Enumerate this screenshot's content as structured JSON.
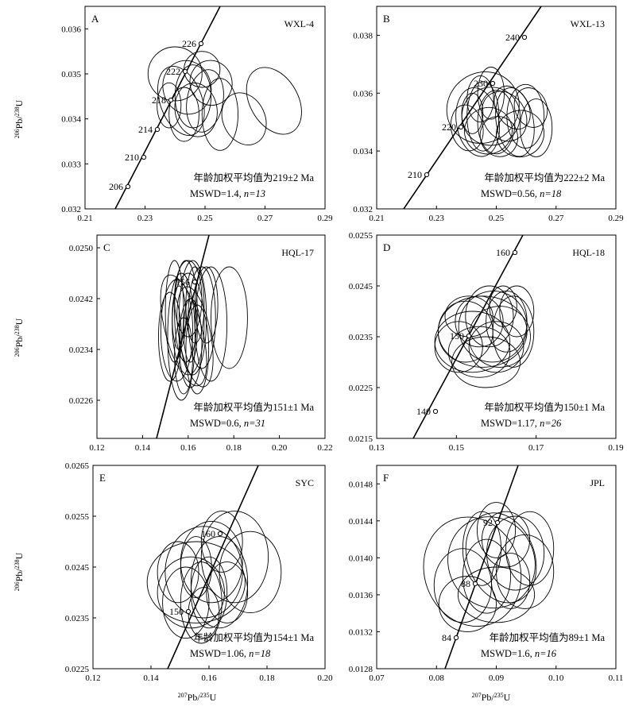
{
  "figure": {
    "xlabel_left": "207Pb/235U",
    "xlabel_right": "207Pb/235U",
    "ylabel": "206Pb/238U"
  },
  "chart_data": [
    {
      "type": "concordia",
      "panel": "A",
      "sample": "WXL-4",
      "xlim": [
        0.21,
        0.29
      ],
      "xticks": [
        "0.21",
        "0.23",
        "0.25",
        "0.27",
        "0.29"
      ],
      "ylim": [
        0.032,
        0.0365
      ],
      "yticks": [
        "0.032",
        "0.033",
        "0.034",
        "0.035",
        "0.036"
      ],
      "concordia_ages": [
        "206",
        "210",
        "214",
        "218",
        "222",
        "226"
      ],
      "concordia_label_side": "left",
      "mean_age": "年龄加权平均值为219±2 Ma",
      "mswd": "MSWD=1.4, ",
      "n": "n=13",
      "ellipses": [
        {
          "x": 0.24,
          "y": 0.035,
          "rx": 0.009,
          "ry": 0.0006,
          "rot": 0
        },
        {
          "x": 0.244,
          "y": 0.0347,
          "rx": 0.008,
          "ry": 0.0006,
          "rot": -15
        },
        {
          "x": 0.242,
          "y": 0.0344,
          "rx": 0.007,
          "ry": 0.0008,
          "rot": -20
        },
        {
          "x": 0.246,
          "y": 0.0345,
          "rx": 0.006,
          "ry": 0.0007,
          "rot": 0
        },
        {
          "x": 0.25,
          "y": 0.0344,
          "rx": 0.006,
          "ry": 0.0007,
          "rot": 10
        },
        {
          "x": 0.247,
          "y": 0.0342,
          "rx": 0.007,
          "ry": 0.0006,
          "rot": -10
        },
        {
          "x": 0.243,
          "y": 0.0341,
          "rx": 0.005,
          "ry": 0.0006,
          "rot": 0
        },
        {
          "x": 0.252,
          "y": 0.0348,
          "rx": 0.007,
          "ry": 0.0005,
          "rot": -15
        },
        {
          "x": 0.255,
          "y": 0.0341,
          "rx": 0.006,
          "ry": 0.0008,
          "rot": 0
        },
        {
          "x": 0.263,
          "y": 0.034,
          "rx": 0.007,
          "ry": 0.0006,
          "rot": -25
        },
        {
          "x": 0.273,
          "y": 0.0344,
          "rx": 0.008,
          "ry": 0.0008,
          "rot": -30
        },
        {
          "x": 0.249,
          "y": 0.0351,
          "rx": 0.006,
          "ry": 0.0004,
          "rot": 0
        },
        {
          "x": 0.238,
          "y": 0.0343,
          "rx": 0.004,
          "ry": 0.0005,
          "rot": 0
        }
      ]
    },
    {
      "type": "concordia",
      "panel": "B",
      "sample": "WXL-13",
      "xlim": [
        0.21,
        0.3
      ],
      "xticks": [
        "0.21",
        "0.23",
        "0.25",
        "0.27",
        "0.29"
      ],
      "ylim": [
        0.032,
        0.039
      ],
      "yticks": [
        "0.032",
        "0.034",
        "0.036",
        "0.038"
      ],
      "concordia_ages": [
        "210",
        "220",
        "230",
        "240"
      ],
      "concordia_label_side": "left",
      "mean_age": "年龄加权平均值为222±2 Ma",
      "mswd": "MSWD=0.56, ",
      "n": "n=18",
      "ellipses": [
        {
          "x": 0.25,
          "y": 0.0355,
          "rx": 0.014,
          "ry": 0.0012,
          "rot": -40
        },
        {
          "x": 0.253,
          "y": 0.0352,
          "rx": 0.011,
          "ry": 0.001,
          "rot": -40
        },
        {
          "x": 0.248,
          "y": 0.035,
          "rx": 0.008,
          "ry": 0.0012,
          "rot": -10
        },
        {
          "x": 0.25,
          "y": 0.0352,
          "rx": 0.006,
          "ry": 0.0012,
          "rot": 0
        },
        {
          "x": 0.255,
          "y": 0.035,
          "rx": 0.007,
          "ry": 0.0011,
          "rot": 0
        },
        {
          "x": 0.252,
          "y": 0.0347,
          "rx": 0.009,
          "ry": 0.0008,
          "rot": -20
        },
        {
          "x": 0.258,
          "y": 0.0352,
          "rx": 0.008,
          "ry": 0.0009,
          "rot": -30
        },
        {
          "x": 0.262,
          "y": 0.035,
          "rx": 0.007,
          "ry": 0.0012,
          "rot": -10
        },
        {
          "x": 0.266,
          "y": 0.0352,
          "rx": 0.007,
          "ry": 0.0011,
          "rot": 0
        },
        {
          "x": 0.27,
          "y": 0.0348,
          "rx": 0.006,
          "ry": 0.001,
          "rot": 0
        },
        {
          "x": 0.244,
          "y": 0.0348,
          "rx": 0.006,
          "ry": 0.0008,
          "rot": -10
        },
        {
          "x": 0.256,
          "y": 0.0345,
          "rx": 0.007,
          "ry": 0.0007,
          "rot": -20
        },
        {
          "x": 0.261,
          "y": 0.0355,
          "rx": 0.006,
          "ry": 0.0008,
          "rot": -30
        },
        {
          "x": 0.249,
          "y": 0.0358,
          "rx": 0.005,
          "ry": 0.0008,
          "rot": 0
        },
        {
          "x": 0.246,
          "y": 0.0353,
          "rx": 0.004,
          "ry": 0.0007,
          "rot": 0
        },
        {
          "x": 0.264,
          "y": 0.0346,
          "rx": 0.009,
          "ry": 0.0008,
          "rot": -20
        },
        {
          "x": 0.268,
          "y": 0.0355,
          "rx": 0.006,
          "ry": 0.0007,
          "rot": -20
        },
        {
          "x": 0.253,
          "y": 0.036,
          "rx": 0.005,
          "ry": 0.0009,
          "rot": 0
        }
      ]
    },
    {
      "type": "concordia",
      "panel": "C",
      "sample": "HQL-17",
      "xlim": [
        0.12,
        0.22
      ],
      "xticks": [
        "0.12",
        "0.14",
        "0.16",
        "0.18",
        "0.20",
        "0.22"
      ],
      "ylim": [
        0.022,
        0.0252
      ],
      "yticks": [
        "0.0226",
        "0.0234",
        "0.0242",
        "0.0250"
      ],
      "concordia_ages": [
        "156"
      ],
      "concordia_label_side": "left",
      "mean_age": "年龄加权平均值为151±1 Ma",
      "mswd": "MSWD=0.6, ",
      "n": "n=31",
      "ellipses": [
        {
          "x": 0.158,
          "y": 0.0237,
          "rx": 0.008,
          "ry": 0.0009,
          "rot": -15
        },
        {
          "x": 0.16,
          "y": 0.0238,
          "rx": 0.007,
          "ry": 0.0008,
          "rot": 0
        },
        {
          "x": 0.157,
          "y": 0.0236,
          "rx": 0.006,
          "ry": 0.001,
          "rot": 0
        },
        {
          "x": 0.162,
          "y": 0.0239,
          "rx": 0.006,
          "ry": 0.0009,
          "rot": 0
        },
        {
          "x": 0.155,
          "y": 0.0237,
          "rx": 0.007,
          "ry": 0.0008,
          "rot": 0
        },
        {
          "x": 0.163,
          "y": 0.0236,
          "rx": 0.007,
          "ry": 0.0008,
          "rot": -10
        },
        {
          "x": 0.159,
          "y": 0.024,
          "rx": 0.005,
          "ry": 0.0008,
          "rot": 0
        },
        {
          "x": 0.161,
          "y": 0.0235,
          "rx": 0.005,
          "ry": 0.0007,
          "rot": 0
        },
        {
          "x": 0.166,
          "y": 0.0239,
          "rx": 0.006,
          "ry": 0.0008,
          "rot": 0
        },
        {
          "x": 0.154,
          "y": 0.024,
          "rx": 0.004,
          "ry": 0.0008,
          "rot": 0
        },
        {
          "x": 0.17,
          "y": 0.0238,
          "rx": 0.007,
          "ry": 0.0009,
          "rot": 0
        },
        {
          "x": 0.178,
          "y": 0.0239,
          "rx": 0.008,
          "ry": 0.0008,
          "rot": 0
        },
        {
          "x": 0.16,
          "y": 0.0242,
          "rx": 0.006,
          "ry": 0.0006,
          "rot": 0
        },
        {
          "x": 0.158,
          "y": 0.0233,
          "rx": 0.004,
          "ry": 0.0006,
          "rot": 0
        },
        {
          "x": 0.164,
          "y": 0.0234,
          "rx": 0.005,
          "ry": 0.0007,
          "rot": 0
        },
        {
          "x": 0.152,
          "y": 0.0236,
          "rx": 0.005,
          "ry": 0.0007,
          "rot": 0
        },
        {
          "x": 0.168,
          "y": 0.0241,
          "rx": 0.005,
          "ry": 0.0006,
          "rot": 0
        },
        {
          "x": 0.156,
          "y": 0.0239,
          "rx": 0.003,
          "ry": 0.0005,
          "rot": 0
        },
        {
          "x": 0.161,
          "y": 0.0237,
          "rx": 0.003,
          "ry": 0.0005,
          "rot": 0
        },
        {
          "x": 0.163,
          "y": 0.0241,
          "rx": 0.004,
          "ry": 0.0006,
          "rot": 0
        }
      ]
    },
    {
      "type": "concordia",
      "panel": "D",
      "sample": "HQL-18",
      "xlim": [
        0.13,
        0.2
      ],
      "xticks": [
        "0.13",
        "0.15",
        "0.17",
        "0.19"
      ],
      "ylim": [
        0.0215,
        0.0255
      ],
      "yticks": [
        "0.0215",
        "0.0225",
        "0.0235",
        "0.0245",
        "0.0255"
      ],
      "concordia_ages": [
        "140",
        "150",
        "160"
      ],
      "concordia_label_side": "left",
      "mean_age": "年龄加权平均值为150±1 Ma",
      "mswd": "MSWD=1.17, ",
      "n": "n=26",
      "ellipses": [
        {
          "x": 0.161,
          "y": 0.0236,
          "rx": 0.013,
          "ry": 0.0007,
          "rot": 0
        },
        {
          "x": 0.158,
          "y": 0.0234,
          "rx": 0.011,
          "ry": 0.0006,
          "rot": 0
        },
        {
          "x": 0.164,
          "y": 0.0237,
          "rx": 0.01,
          "ry": 0.0007,
          "rot": 10
        },
        {
          "x": 0.16,
          "y": 0.0232,
          "rx": 0.009,
          "ry": 0.0005,
          "rot": 0
        },
        {
          "x": 0.166,
          "y": 0.0235,
          "rx": 0.009,
          "ry": 0.0006,
          "rot": -10
        },
        {
          "x": 0.156,
          "y": 0.0236,
          "rx": 0.008,
          "ry": 0.0006,
          "rot": 0
        },
        {
          "x": 0.163,
          "y": 0.0239,
          "rx": 0.007,
          "ry": 0.0006,
          "rot": 0
        },
        {
          "x": 0.168,
          "y": 0.0238,
          "rx": 0.006,
          "ry": 0.0006,
          "rot": 0
        },
        {
          "x": 0.171,
          "y": 0.024,
          "rx": 0.005,
          "ry": 0.0005,
          "rot": 0
        },
        {
          "x": 0.154,
          "y": 0.0233,
          "rx": 0.007,
          "ry": 0.0005,
          "rot": 0
        },
        {
          "x": 0.16,
          "y": 0.0238,
          "rx": 0.007,
          "ry": 0.0005,
          "rot": 0
        },
        {
          "x": 0.165,
          "y": 0.0233,
          "rx": 0.008,
          "ry": 0.0005,
          "rot": 0
        },
        {
          "x": 0.17,
          "y": 0.0236,
          "rx": 0.006,
          "ry": 0.0007,
          "rot": 0
        },
        {
          "x": 0.162,
          "y": 0.023,
          "rx": 0.01,
          "ry": 0.0005,
          "rot": 0
        },
        {
          "x": 0.157,
          "y": 0.0239,
          "rx": 0.007,
          "ry": 0.0004,
          "rot": 0
        },
        {
          "x": 0.167,
          "y": 0.0241,
          "rx": 0.004,
          "ry": 0.0004,
          "rot": 0
        }
      ]
    },
    {
      "type": "concordia",
      "panel": "E",
      "sample": "SYC",
      "xlim": [
        0.12,
        0.21
      ],
      "xticks": [
        "0.12",
        "0.14",
        "0.16",
        "0.18",
        "0.20"
      ],
      "ylim": [
        0.0225,
        0.0265
      ],
      "yticks": [
        "0.0225",
        "0.0235",
        "0.0245",
        "0.0255",
        "0.0265"
      ],
      "concordia_ages": [
        "150",
        "160"
      ],
      "concordia_label_side": "left",
      "mean_age": "年龄加权平均值为154±1 Ma",
      "mswd": "MSWD=1.06, ",
      "n": "n=18",
      "ellipses": [
        {
          "x": 0.16,
          "y": 0.0242,
          "rx": 0.019,
          "ry": 0.0008,
          "rot": 0
        },
        {
          "x": 0.163,
          "y": 0.0244,
          "rx": 0.015,
          "ry": 0.0009,
          "rot": 0
        },
        {
          "x": 0.158,
          "y": 0.024,
          "rx": 0.013,
          "ry": 0.0007,
          "rot": 0
        },
        {
          "x": 0.166,
          "y": 0.0246,
          "rx": 0.012,
          "ry": 0.0008,
          "rot": 0
        },
        {
          "x": 0.169,
          "y": 0.0242,
          "rx": 0.011,
          "ry": 0.0009,
          "rot": 0
        },
        {
          "x": 0.156,
          "y": 0.0238,
          "rx": 0.009,
          "ry": 0.0007,
          "rot": 0
        },
        {
          "x": 0.162,
          "y": 0.0238,
          "rx": 0.008,
          "ry": 0.0008,
          "rot": 0
        },
        {
          "x": 0.175,
          "y": 0.0247,
          "rx": 0.013,
          "ry": 0.0009,
          "rot": 0
        },
        {
          "x": 0.181,
          "y": 0.0244,
          "rx": 0.012,
          "ry": 0.0008,
          "rot": 0
        },
        {
          "x": 0.153,
          "y": 0.0244,
          "rx": 0.008,
          "ry": 0.0006,
          "rot": 0
        },
        {
          "x": 0.165,
          "y": 0.024,
          "rx": 0.007,
          "ry": 0.0007,
          "rot": 0
        },
        {
          "x": 0.172,
          "y": 0.024,
          "rx": 0.008,
          "ry": 0.0006,
          "rot": 0
        },
        {
          "x": 0.16,
          "y": 0.0245,
          "rx": 0.006,
          "ry": 0.0006,
          "rot": 0
        },
        {
          "x": 0.17,
          "y": 0.025,
          "rx": 0.008,
          "ry": 0.0006,
          "rot": 0
        },
        {
          "x": 0.163,
          "y": 0.0236,
          "rx": 0.006,
          "ry": 0.0005,
          "rot": 0
        }
      ]
    },
    {
      "type": "concordia",
      "panel": "F",
      "sample": "JPL",
      "xlim": [
        0.07,
        0.12
      ],
      "xticks": [
        "0.07",
        "0.08",
        "0.09",
        "0.10",
        "0.11"
      ],
      "ylim": [
        0.0128,
        0.015
      ],
      "yticks": [
        "0.0128",
        "0.0132",
        "0.0136",
        "0.0140",
        "0.0144",
        "0.0148"
      ],
      "concordia_ages": [
        "84",
        "88",
        "92"
      ],
      "concordia_label_side": "left",
      "mean_age": "年龄加权平均值为89±1 Ma",
      "mswd": "MSWD=1.6, ",
      "n": "n=16",
      "ellipses": [
        {
          "x": 0.09,
          "y": 0.01385,
          "rx": 0.01,
          "ry": 0.0006,
          "rot": -20
        },
        {
          "x": 0.094,
          "y": 0.01395,
          "rx": 0.009,
          "ry": 0.0005,
          "rot": -25
        },
        {
          "x": 0.088,
          "y": 0.0137,
          "rx": 0.006,
          "ry": 0.0004,
          "rot": 0
        },
        {
          "x": 0.096,
          "y": 0.014,
          "rx": 0.007,
          "ry": 0.0005,
          "rot": -20
        },
        {
          "x": 0.099,
          "y": 0.01405,
          "rx": 0.006,
          "ry": 0.0004,
          "rot": 0
        },
        {
          "x": 0.093,
          "y": 0.0138,
          "rx": 0.005,
          "ry": 0.0004,
          "rot": 0
        },
        {
          "x": 0.097,
          "y": 0.0142,
          "rx": 0.005,
          "ry": 0.0003,
          "rot": 0
        },
        {
          "x": 0.101,
          "y": 0.01385,
          "rx": 0.006,
          "ry": 0.0004,
          "rot": 0
        },
        {
          "x": 0.095,
          "y": 0.0136,
          "rx": 0.008,
          "ry": 0.0003,
          "rot": 0
        },
        {
          "x": 0.089,
          "y": 0.0135,
          "rx": 0.006,
          "ry": 0.0003,
          "rot": 0
        },
        {
          "x": 0.102,
          "y": 0.0141,
          "rx": 0.005,
          "ry": 0.0004,
          "rot": 0
        },
        {
          "x": 0.092,
          "y": 0.0141,
          "rx": 0.004,
          "ry": 0.0004,
          "rot": 0
        },
        {
          "x": 0.098,
          "y": 0.01375,
          "rx": 0.004,
          "ry": 0.0003,
          "rot": 0
        },
        {
          "x": 0.095,
          "y": 0.0143,
          "rx": 0.004,
          "ry": 0.0003,
          "rot": 0
        }
      ]
    }
  ]
}
